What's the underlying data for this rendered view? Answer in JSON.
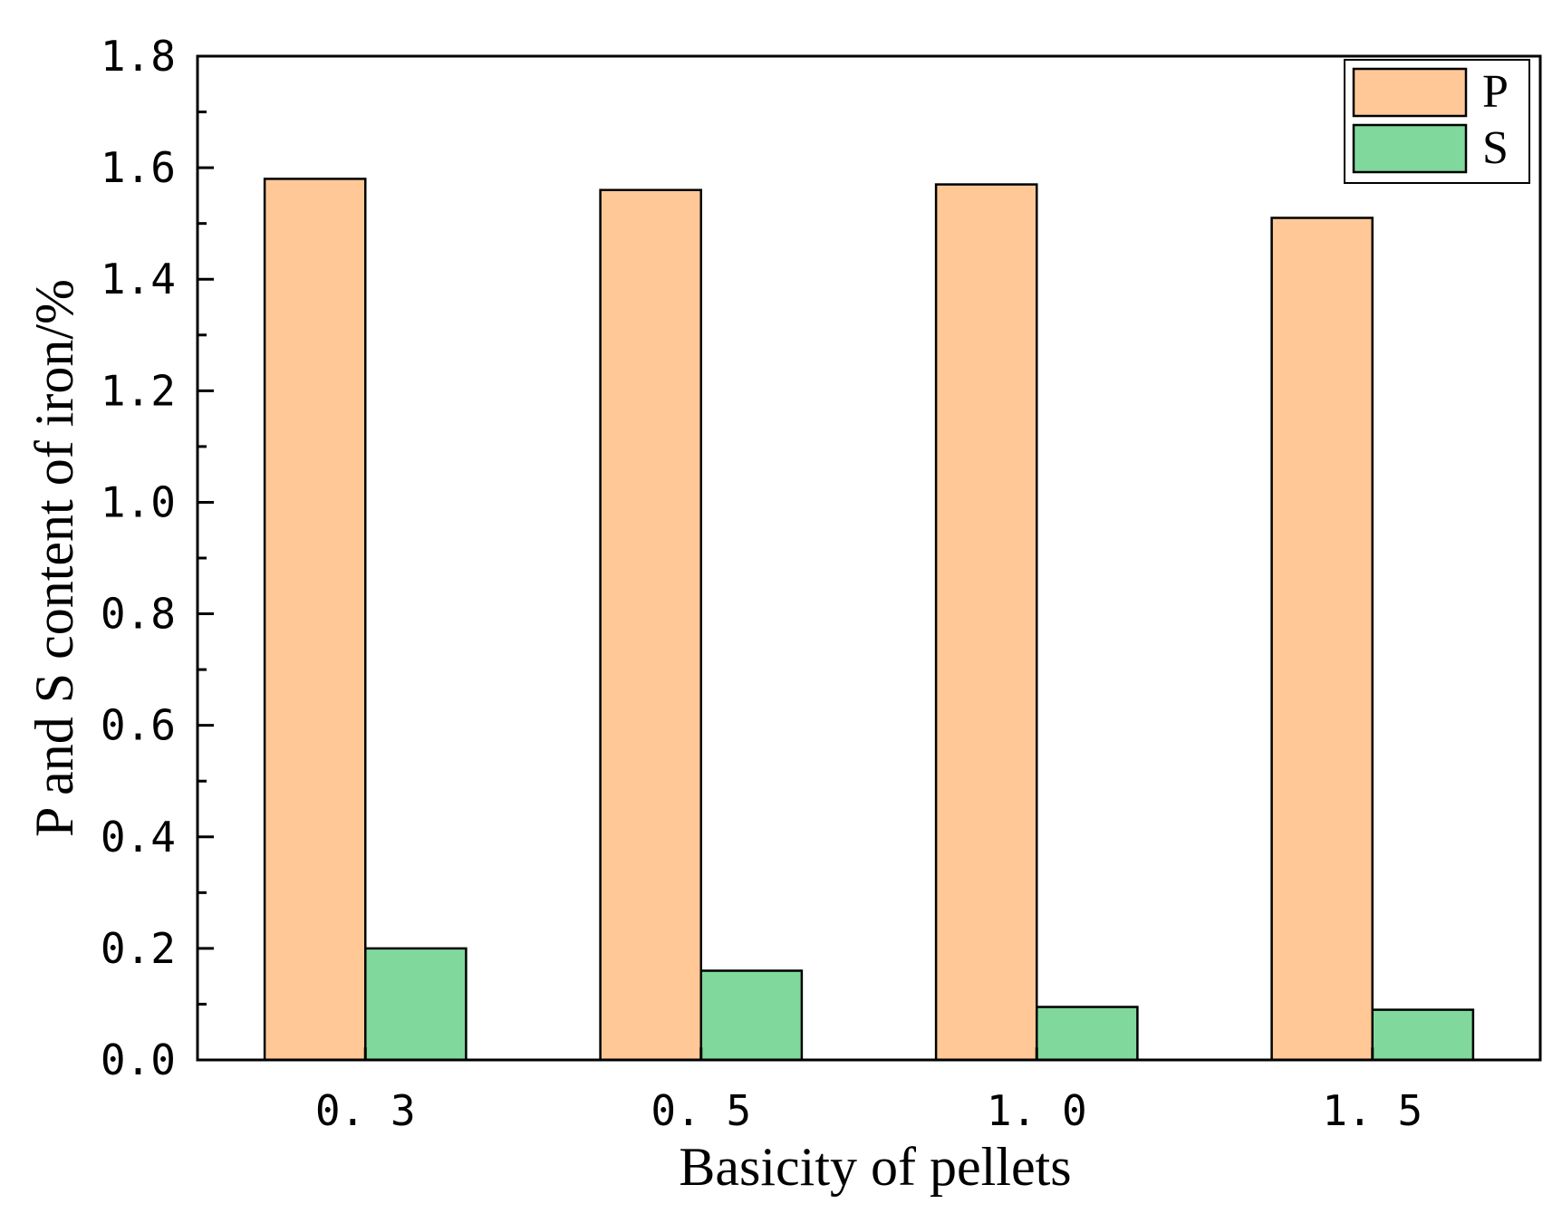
{
  "chart_data": {
    "type": "bar",
    "categories": [
      "0.3",
      "0.5",
      "1.0",
      "1.5"
    ],
    "series": [
      {
        "name": "P",
        "values": [
          1.58,
          1.56,
          1.57,
          1.51
        ],
        "color": "#FFC896"
      },
      {
        "name": "S",
        "values": [
          0.2,
          0.16,
          0.095,
          0.09
        ],
        "color": "#80D89C"
      }
    ],
    "title": "",
    "xlabel": "Basicity of pellets",
    "ylabel": "P and S content of iron/%",
    "ylim": [
      0,
      1.8
    ],
    "yticks": [
      "0.0",
      "0.2",
      "0.4",
      "0.6",
      "0.8",
      "1.0",
      "1.2",
      "1.4",
      "1.6",
      "1.8"
    ],
    "xtick_labels": [
      "0. 3",
      "0. 5",
      "1. 0",
      "1. 5"
    ],
    "grid": false,
    "legend": "top-right"
  }
}
